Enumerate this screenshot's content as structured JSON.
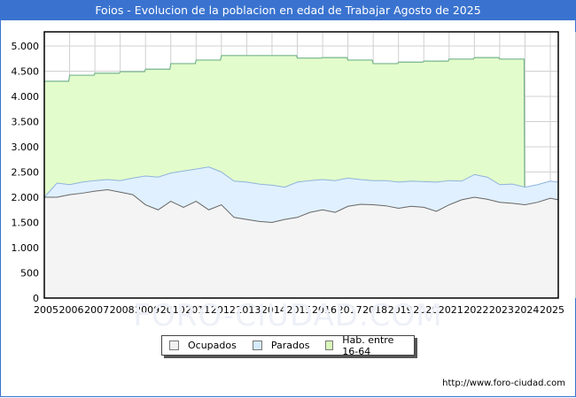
{
  "title": "Foios - Evolucion de la poblacion en edad de Trabajar Agosto de 2025",
  "source": "http://www.foro-ciudad.com",
  "watermark": "FORO-CIUDAD.COM",
  "colors": {
    "title_bar": "#3a73cf",
    "ocupados_fill": "#f4f4f4",
    "ocupados_line": "#666666",
    "parados_fill": "#e0f0fe",
    "parados_line": "#8fb3dc",
    "hab_fill": "#e3fccb",
    "hab_line": "#74b48c"
  },
  "legend": [
    {
      "label": "Ocupados",
      "color": "#f0f0f0"
    },
    {
      "label": "Parados",
      "color": "#d6eafc"
    },
    {
      "label": "Hab. entre 16-64",
      "color": "#d9f8b8"
    }
  ],
  "chart_data": {
    "type": "area",
    "title": "Foios - Evolucion de la poblacion en edad de Trabajar Agosto de 2025",
    "xlabel": "",
    "ylabel": "",
    "ylim": [
      0,
      5250
    ],
    "y_ticks": [
      "0",
      "500",
      "1.000",
      "1.500",
      "2.000",
      "2.500",
      "3.000",
      "3.500",
      "4.000",
      "4.500",
      "5.000"
    ],
    "x_ticks": [
      "2005",
      "2006",
      "2007",
      "2008",
      "2009",
      "2010",
      "2011",
      "2012",
      "2013",
      "2014",
      "2015",
      "2016",
      "2017",
      "2018",
      "2019",
      "2020",
      "2021",
      "2022",
      "2023",
      "2024",
      "2025"
    ],
    "grid": true,
    "legend_position": "bottom",
    "series": [
      {
        "name": "Hab. entre 16-64",
        "x": [
          2005,
          2006,
          2007,
          2008,
          2009,
          2010,
          2011,
          2012,
          2013,
          2014,
          2015,
          2016,
          2017,
          2018,
          2019,
          2020,
          2021,
          2022,
          2023
        ],
        "values": [
          4300,
          4420,
          4460,
          4490,
          4540,
          4650,
          4720,
          4810,
          4810,
          4810,
          4760,
          4770,
          4720,
          4650,
          4680,
          4700,
          4740,
          4770,
          4740
        ]
      },
      {
        "name": "Parados",
        "x": [
          2005.0,
          2005.5,
          2006.0,
          2006.5,
          2007.0,
          2007.5,
          2008.0,
          2008.5,
          2009.0,
          2009.5,
          2010.0,
          2010.5,
          2011.0,
          2011.5,
          2012.0,
          2012.5,
          2013.0,
          2013.5,
          2014.0,
          2014.5,
          2015.0,
          2015.5,
          2016.0,
          2016.5,
          2017.0,
          2017.5,
          2018.0,
          2018.5,
          2019.0,
          2019.5,
          2020.0,
          2020.5,
          2021.0,
          2021.5,
          2022.0,
          2022.5,
          2023.0,
          2023.5,
          2024.0,
          2024.5,
          2025.0,
          2025.6
        ],
        "values": [
          2000,
          2280,
          2250,
          2300,
          2330,
          2350,
          2330,
          2380,
          2420,
          2400,
          2480,
          2520,
          2560,
          2600,
          2500,
          2320,
          2300,
          2260,
          2240,
          2200,
          2300,
          2330,
          2350,
          2330,
          2380,
          2350,
          2330,
          2330,
          2300,
          2320,
          2310,
          2300,
          2330,
          2320,
          2450,
          2400,
          2250,
          2260,
          2200,
          2250,
          2320,
          2300
        ]
      },
      {
        "name": "Ocupados",
        "x": [
          2005.0,
          2005.5,
          2006.0,
          2006.5,
          2007.0,
          2007.5,
          2008.0,
          2008.5,
          2009.0,
          2009.5,
          2010.0,
          2010.5,
          2011.0,
          2011.5,
          2012.0,
          2012.5,
          2013.0,
          2013.5,
          2014.0,
          2014.5,
          2015.0,
          2015.5,
          2016.0,
          2016.5,
          2017.0,
          2017.5,
          2018.0,
          2018.5,
          2019.0,
          2019.5,
          2020.0,
          2020.5,
          2021.0,
          2021.5,
          2022.0,
          2022.5,
          2023.0,
          2023.5,
          2024.0,
          2024.5,
          2025.0,
          2025.6
        ],
        "values": [
          2000,
          2000,
          2050,
          2080,
          2120,
          2150,
          2100,
          2050,
          1850,
          1750,
          1920,
          1800,
          1920,
          1750,
          1850,
          1600,
          1560,
          1520,
          1500,
          1560,
          1600,
          1700,
          1750,
          1700,
          1820,
          1860,
          1850,
          1830,
          1780,
          1820,
          1800,
          1720,
          1850,
          1950,
          2000,
          1960,
          1900,
          1880,
          1850,
          1900,
          1980,
          1950
        ]
      }
    ]
  }
}
